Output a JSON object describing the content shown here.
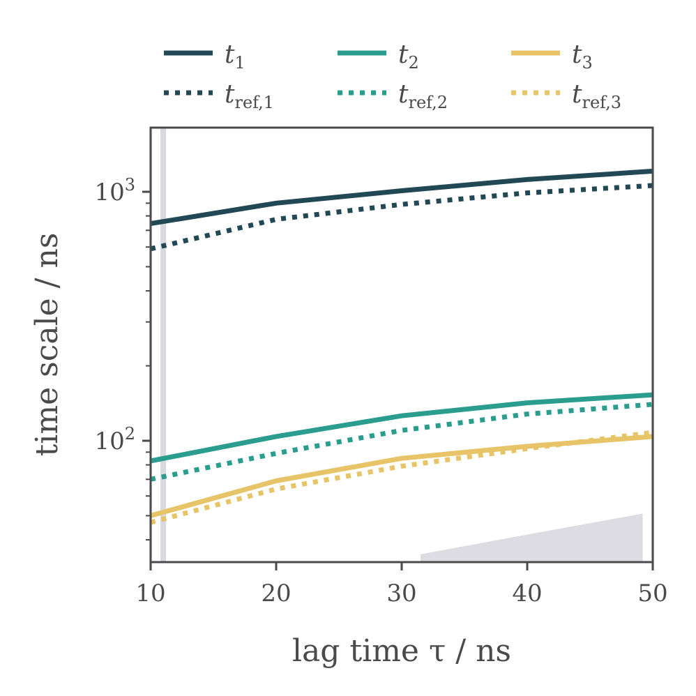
{
  "chart_data": {
    "type": "line",
    "xlabel": "lag time τ / ns",
    "ylabel": "time scale / ns",
    "xlim": [
      10,
      50
    ],
    "ylim": [
      35,
      1800
    ],
    "yscale": "log",
    "x_ticks": [
      "10",
      "20",
      "30",
      "40",
      "50"
    ],
    "y_ticks": [
      {
        "base": "10",
        "exp": "2",
        "value": 100
      },
      {
        "base": "10",
        "exp": "3",
        "value": 1000
      }
    ],
    "grid": false,
    "legend_position": "top",
    "x": [
      10,
      20,
      30,
      40,
      50
    ],
    "series": [
      {
        "name": "t",
        "sub": "1",
        "style": "solid",
        "color": "#224855",
        "values": [
          745,
          900,
          1010,
          1120,
          1210
        ]
      },
      {
        "name": "t",
        "sub": "2",
        "style": "solid",
        "color": "#2a9d8e",
        "values": [
          83,
          104,
          126,
          142,
          153
        ]
      },
      {
        "name": "t",
        "sub": "3",
        "style": "solid",
        "color": "#e8c468",
        "values": [
          50,
          69,
          85,
          95,
          104
        ]
      },
      {
        "name": "t",
        "sub": "ref,1",
        "style": "dotted",
        "color": "#224855",
        "values": [
          590,
          775,
          890,
          990,
          1060
        ]
      },
      {
        "name": "t",
        "sub": "ref,2",
        "style": "dotted",
        "color": "#2a9d8e",
        "values": [
          70,
          89,
          110,
          128,
          140
        ]
      },
      {
        "name": "t",
        "sub": "ref,3",
        "style": "dotted",
        "color": "#e8c468",
        "values": [
          47,
          64,
          79,
          93,
          108
        ]
      }
    ],
    "shaded_band": {
      "x": 11,
      "color": "#d9d9e1"
    },
    "shaded_area": {
      "x": [
        31.5,
        40,
        49.2
      ],
      "upper": [
        35,
        42,
        51
      ],
      "color": "#dcdce2"
    }
  }
}
